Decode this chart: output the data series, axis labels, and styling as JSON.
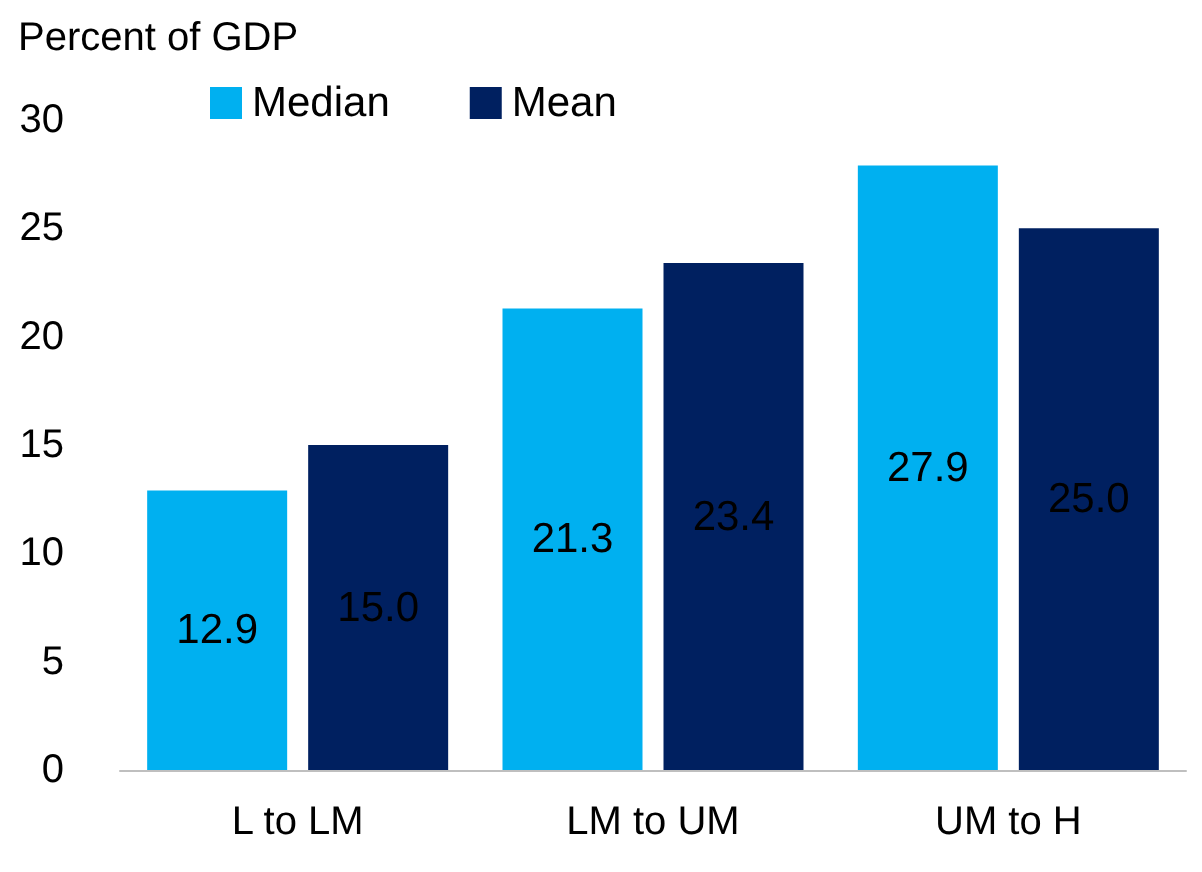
{
  "chart_data": {
    "type": "bar",
    "ylabel": "Percent of GDP",
    "categories": [
      "L to LM",
      "LM to UM",
      "UM to H"
    ],
    "series": [
      {
        "name": "Median",
        "color": "#00b0f0",
        "values": [
          12.9,
          21.3,
          27.9
        ],
        "value_labels": [
          "12.9",
          "21.3",
          "27.9"
        ]
      },
      {
        "name": "Mean",
        "color": "#002060",
        "values": [
          15.0,
          23.4,
          25.0
        ],
        "value_labels": [
          "15.0",
          "23.4",
          "25.0"
        ]
      }
    ],
    "ylim": [
      0,
      30
    ],
    "yticks": [
      0,
      5,
      10,
      15,
      20,
      25,
      30
    ],
    "grid": false,
    "legend": "top"
  }
}
